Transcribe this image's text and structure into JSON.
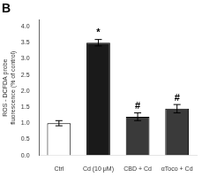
{
  "chart_data": {
    "type": "bar",
    "title": "B",
    "categories": [
      "Ctrl",
      "Cd (10 μM)",
      "CBD + Cd",
      "αToco + Cd"
    ],
    "values": [
      1.0,
      3.5,
      1.2,
      1.45
    ],
    "errors": [
      0.08,
      0.1,
      0.12,
      0.13
    ],
    "colors": [
      "white",
      "#1a1a1a",
      "#3a3a3a",
      "#3a3a3a"
    ],
    "ylabel": "ROS - DCFDA probe\nfluorescence (% of control)",
    "ylim": [
      0,
      4.2
    ],
    "yticks": [
      {
        "value": 0,
        "label": "0.0"
      },
      0.5,
      {
        "value": 1.0,
        "label": "1.0"
      },
      1.5,
      {
        "value": 2.0,
        "label": "2.0"
      },
      2.5,
      {
        "value": 3.0,
        "label": "3.0"
      },
      3.5,
      {
        "value": 4.0,
        "label": "4.0"
      }
    ],
    "annotations": [
      null,
      "*",
      "#",
      "#"
    ],
    "grid": false
  }
}
